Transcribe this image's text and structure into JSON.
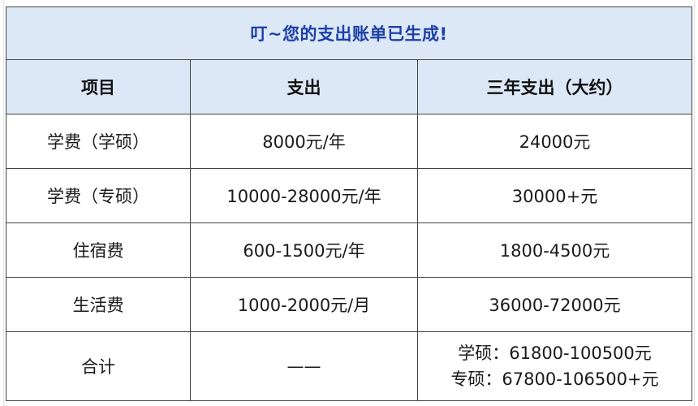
{
  "title": "叮~您的支出账单已生成!",
  "headers": {
    "item": "项目",
    "expense": "支出",
    "three_year": "三年支出（大约）"
  },
  "rows": [
    {
      "item": "学费（学硕）",
      "expense": "8000元/年",
      "three_year": "24000元"
    },
    {
      "item": "学费（专硕）",
      "expense": "10000-28000元/年",
      "three_year": "30000+元"
    },
    {
      "item": "住宿费",
      "expense": "600-1500元/年",
      "three_year": "1800-4500元"
    },
    {
      "item": "生活费",
      "expense": "1000-2000元/月",
      "three_year": "36000-72000元"
    }
  ],
  "total": {
    "item": "合计",
    "expense": "——",
    "three_year_lines": [
      "学硕：61800-100500元",
      "专硕：67800-106500+元"
    ]
  },
  "colors": {
    "title_text": "#1c3fa8",
    "header_bg": "#dde8f6",
    "border": "#444444"
  }
}
